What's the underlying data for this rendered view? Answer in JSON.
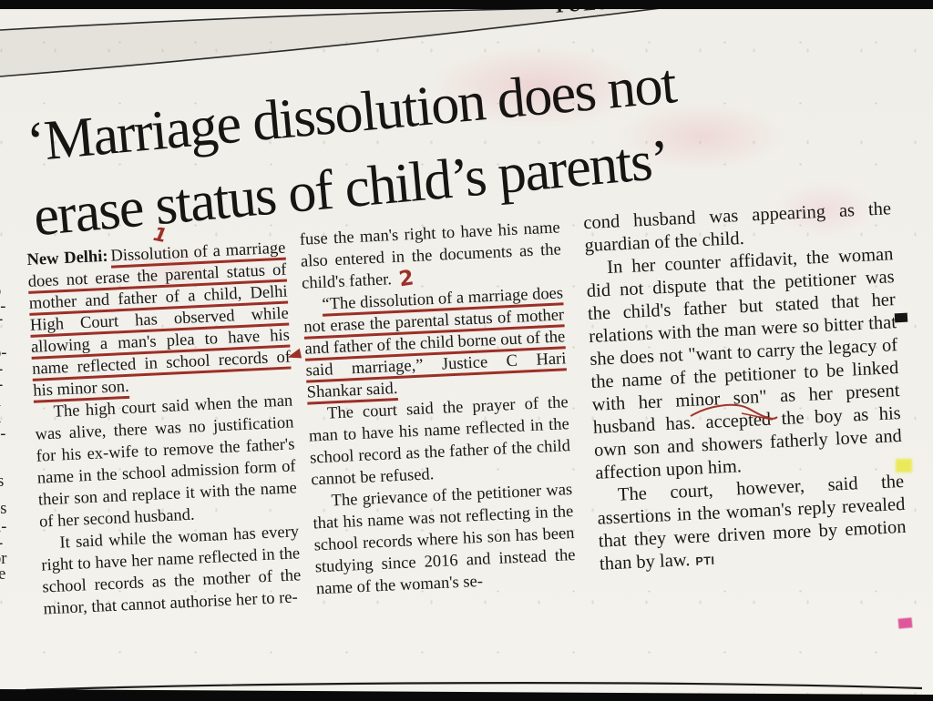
{
  "page": {
    "masthead_fragment": "TUESDA"
  },
  "colors": {
    "paper": "#f2f0ea",
    "ink": "#1b1816",
    "annotation_red": "#9c2f27",
    "bar_black": "#0a0a0a",
    "highlight_yellow": "#e9e94a",
    "highlight_pink": "#df579b"
  },
  "headline": {
    "line1": "‘Marriage dissolution does not",
    "line2": "erase status of child’s parents’"
  },
  "annotations": {
    "mark1": "1",
    "mark2": "2"
  },
  "columns": {
    "col1": {
      "dateline": "New Delhi:",
      "lead_underlined": "Dissolution of a marriage does not erase the parental status of mother and father of a child, Delhi High Court has observed while allowing a man's plea to have his name reflected in school records of his minor son.",
      "p2": "The high court said when the man was alive, there was no justification for his ex-wife to remove the father's name in the school admission form of their son and replace it with the name of her second husband.",
      "p3": "It said while the woman has every right to have her name reflected in the school records as the mother of the minor, that cannot authorise her to re-"
    },
    "col2": {
      "p1": "fuse the man's right to have his name also entered in the documents as the child's father.",
      "quote_underlined": "“The dissolution of a marriage does not erase the parental status of mother and father of the child borne out of the said marriage,” Justice C Hari Shankar said.",
      "p2": "The court said the prayer of the man to have his name reflected in the school record as the father of the child cannot be refused.",
      "p3": "The grievance of the petitioner was that his name was not reflecting in the school records where his son has been studying since 2016 and instead the name of the woman's se-"
    },
    "col3": {
      "p1": "cond husband was appearing as the guardian of the child.",
      "p2": "In her counter affidavit, the woman did not dispute that the petitioner was the child's father but stated that her relations with the man were so bitter that she does not \"want to carry the legacy of the name of the petitioner to be linked with her minor son\" as her present husband has. accepted the boy as his own son and showers fatherly love and affection upon him.",
      "p3": "The court, however, said the assertions in the woman's reply revealed that they were driven more by emotion than by law.",
      "byline": "PTI"
    }
  },
  "edge_fragments": [
    "-",
    "o",
    "e-",
    "i-",
    "o-",
    "i-",
    "t-",
    "n",
    "d",
    "e-",
    "e",
    "is",
    "es",
    "n-",
    "i-",
    "or",
    "re",
    "e"
  ]
}
